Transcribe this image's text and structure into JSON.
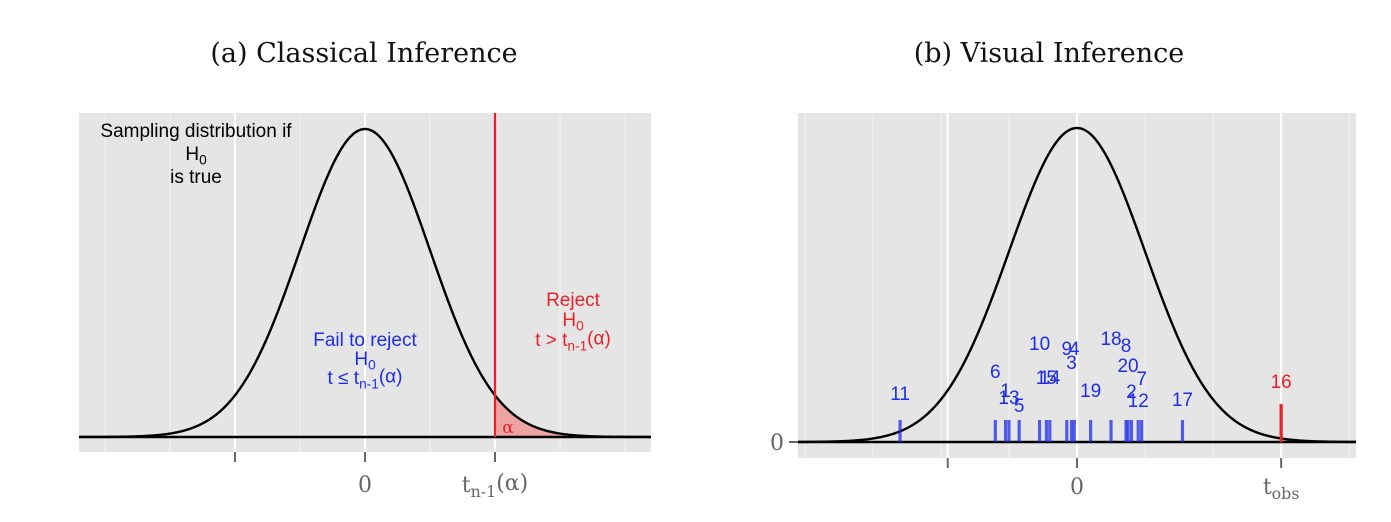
{
  "chart_data": [
    {
      "type": "line",
      "title": "(a) Classical Inference",
      "x_range": [
        -4.4,
        4.4
      ],
      "curve": "standard normal density",
      "xticks": [
        {
          "x": -2,
          "label": ""
        },
        {
          "x": 0,
          "label": "0"
        },
        {
          "x": 2,
          "label": "t_{n-1}(α)"
        }
      ],
      "critical_value": 2,
      "annotations": {
        "density": [
          "Sampling distribution if",
          "H_0",
          "is true"
        ],
        "fail": [
          "Fail to reject",
          "H_0",
          "t ≤ t_{n-1}(α)"
        ],
        "reject": [
          "Reject",
          "H_0",
          "t > t_{n-1}(α)"
        ],
        "alpha": "α"
      },
      "grid": true,
      "legend": "none"
    },
    {
      "type": "line",
      "title": "(b) Visual Inference",
      "x_range": [
        -4.1,
        4.1
      ],
      "curve": "standard normal density",
      "yticks": [
        {
          "y": 0,
          "label": "0"
        }
      ],
      "xticks": [
        {
          "x": -1.9,
          "label": ""
        },
        {
          "x": 0,
          "label": "0"
        },
        {
          "x": 3.0,
          "label": "t_obs"
        }
      ],
      "null_statistics": [
        {
          "label": "1",
          "x": -1.05
        },
        {
          "label": "2",
          "x": 0.8
        },
        {
          "label": "3",
          "x": -0.08
        },
        {
          "label": "4",
          "x": -0.04
        },
        {
          "label": "5",
          "x": -0.85
        },
        {
          "label": "6",
          "x": -1.2
        },
        {
          "label": "7",
          "x": 0.95
        },
        {
          "label": "8",
          "x": 0.72
        },
        {
          "label": "9",
          "x": -0.15
        },
        {
          "label": "10",
          "x": -0.55
        },
        {
          "label": "11",
          "x": -2.6
        },
        {
          "label": "12",
          "x": 0.9
        },
        {
          "label": "13",
          "x": -1.0
        },
        {
          "label": "14",
          "x": -0.4
        },
        {
          "label": "15",
          "x": -0.45
        },
        {
          "label": "17",
          "x": 1.55
        },
        {
          "label": "18",
          "x": 0.5
        },
        {
          "label": "19",
          "x": 0.2
        },
        {
          "label": "20",
          "x": 0.75
        }
      ],
      "observed": {
        "label": "16",
        "x": 3.0
      },
      "colors": {
        "null": "#1f2ee6",
        "observed": "#e8212b",
        "curve": "#000000",
        "panel": "#e5e5e5"
      },
      "grid": true,
      "legend": "none"
    }
  ]
}
